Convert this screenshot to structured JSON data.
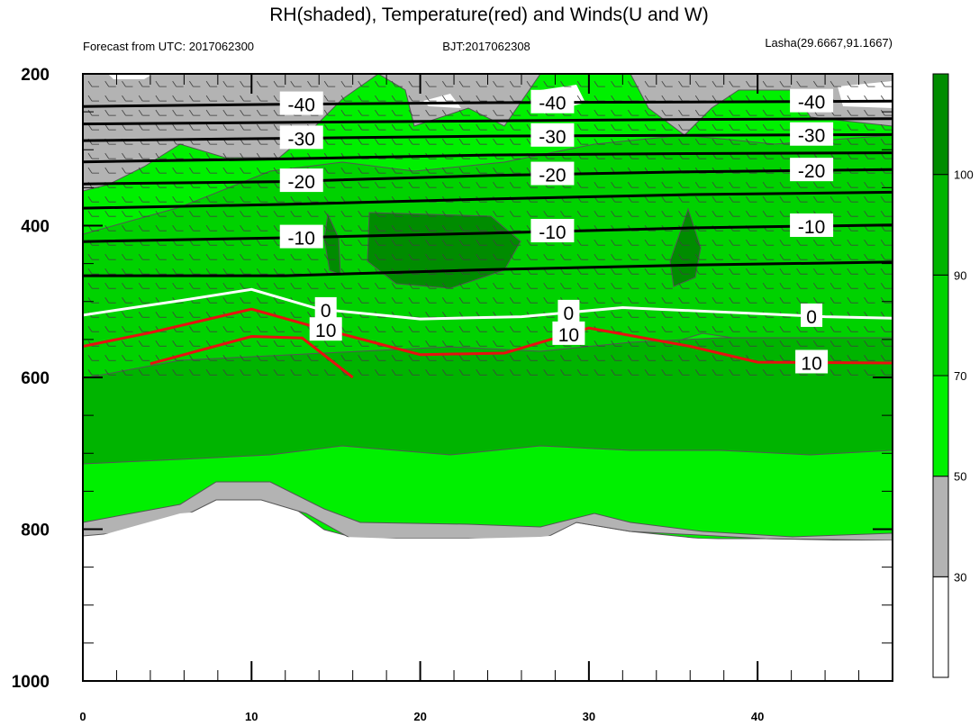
{
  "chart_data": {
    "type": "contour",
    "title": "RH(shaded), Temperature(red) and Winds(U and W)",
    "subtitle_left": "Forecast from UTC: 2017062300",
    "subtitle_center": "BJT:2017062308",
    "subtitle_right": "Lasha(29.6667,91.1667)",
    "x": {
      "min": 0,
      "max": 48,
      "ticks": [
        0,
        10,
        20,
        30,
        40
      ]
    },
    "y": {
      "min": 200,
      "max": 1000,
      "reversed": true,
      "ticks": [
        200,
        400,
        600,
        800,
        1000
      ]
    },
    "colorbar": {
      "ticks": [
        30,
        50,
        70,
        90,
        100
      ],
      "levels": [
        0,
        30,
        50,
        70,
        90,
        100,
        110
      ],
      "colors": [
        "#ffffff",
        "#b3b3b3",
        "#00f000",
        "#00d200",
        "#00b400",
        "#008c00"
      ]
    },
    "temperature_contours": [
      {
        "label": "-40",
        "color": "#000000",
        "x": [
          0,
          12,
          24,
          36,
          48
        ],
        "y": [
          243,
          240,
          238,
          237,
          236
        ]
      },
      {
        "label": "",
        "color": "#000000",
        "x": [
          0,
          12,
          24,
          36,
          48
        ],
        "y": [
          266,
          264,
          262,
          260,
          259
        ]
      },
      {
        "label": "-30",
        "color": "#000000",
        "x": [
          0,
          12,
          24,
          36,
          48
        ],
        "y": [
          288,
          285,
          282,
          281,
          280
        ]
      },
      {
        "label": "",
        "color": "#000000",
        "x": [
          0,
          12,
          24,
          36,
          48
        ],
        "y": [
          316,
          312,
          307,
          305,
          304
        ]
      },
      {
        "label": "-20",
        "color": "#000000",
        "x": [
          0,
          12,
          24,
          36,
          48
        ],
        "y": [
          345,
          342,
          334,
          329,
          326
        ]
      },
      {
        "label": "",
        "color": "#000000",
        "x": [
          0,
          12,
          24,
          36,
          48
        ],
        "y": [
          377,
          372,
          365,
          359,
          356
        ]
      },
      {
        "label": "-10",
        "color": "#000000",
        "x": [
          0,
          12,
          24,
          36,
          48
        ],
        "y": [
          421,
          416,
          410,
          403,
          399
        ]
      },
      {
        "label": "",
        "color": "#000000",
        "x": [
          0,
          12,
          24,
          36,
          48
        ],
        "y": [
          466,
          466,
          458,
          452,
          448
        ]
      },
      {
        "label": "0",
        "color": "#ffffff",
        "x": [
          0,
          6,
          10,
          14,
          20,
          26,
          32,
          38,
          44,
          48
        ],
        "y": [
          518,
          498,
          484,
          510,
          523,
          520,
          508,
          514,
          520,
          522
        ]
      },
      {
        "label": "10",
        "color": "#e81010",
        "x": [
          0,
          4,
          10,
          14,
          20,
          25,
          30,
          36,
          40,
          48
        ],
        "y": [
          559,
          541,
          510,
          535,
          570,
          568,
          535,
          559,
          580,
          581
        ]
      },
      {
        "label": "",
        "color": "#e81010",
        "x": [
          4,
          10,
          13,
          16
        ],
        "y": [
          582,
          546,
          548,
          600
        ]
      }
    ],
    "rh_regions": [
      {
        "level": "50-70",
        "x": [
          0,
          48
        ],
        "y_top": 200,
        "y_bottom": 620
      },
      {
        "level": "30-50",
        "x": [
          0,
          48
        ],
        "y_top": 200,
        "y_bottom": 260
      },
      {
        "level": "70-90",
        "x": [
          0,
          48
        ],
        "y_top": 350,
        "y_bottom": 560
      },
      {
        "level": "90-100",
        "x": [
          17,
          25
        ],
        "y_top": 405,
        "y_bottom": 510
      }
    ]
  }
}
